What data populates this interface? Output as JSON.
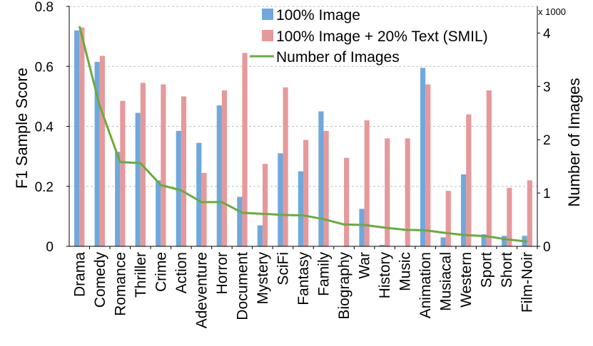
{
  "chart_data": {
    "type": "bar",
    "categories": [
      "Drama",
      "Comedy",
      "Romance",
      "Thriller",
      "Crime",
      "Action",
      "Adeventure",
      "Horror",
      "Document",
      "Mystery",
      "SciFi",
      "Fantasy",
      "Family",
      "Biography",
      "War",
      "History",
      "Music",
      "Animation",
      "Musiacal",
      "Western",
      "Sport",
      "Short",
      "Film-Noir"
    ],
    "series": [
      {
        "name": "100% Image",
        "kind": "bar",
        "axis": "left",
        "color": "#6fa8dc",
        "values": [
          0.72,
          0.615,
          0.315,
          0.445,
          0.22,
          0.385,
          0.345,
          0.47,
          0.165,
          0.07,
          0.31,
          0.25,
          0.45,
          0.0,
          0.125,
          0.005,
          0.0,
          0.595,
          0.03,
          0.24,
          0.04,
          0.035,
          0.035
        ]
      },
      {
        "name": "100% Image + 20% Text (SMIL)",
        "kind": "bar",
        "axis": "left",
        "color": "#e6999b",
        "values": [
          0.73,
          0.635,
          0.485,
          0.545,
          0.54,
          0.5,
          0.245,
          0.52,
          0.645,
          0.275,
          0.53,
          0.355,
          0.385,
          0.295,
          0.42,
          0.36,
          0.36,
          0.54,
          0.185,
          0.44,
          0.52,
          0.195,
          0.22
        ]
      },
      {
        "name": "Number of Images",
        "kind": "line",
        "axis": "right",
        "color": "#6aab3e",
        "values": [
          4.13,
          2.63,
          1.58,
          1.56,
          1.15,
          1.05,
          0.83,
          0.83,
          0.63,
          0.61,
          0.59,
          0.58,
          0.51,
          0.41,
          0.4,
          0.35,
          0.31,
          0.3,
          0.25,
          0.21,
          0.19,
          0.13,
          0.09
        ]
      }
    ],
    "xlabel": "",
    "ylabel": "F1 Sample Score",
    "ylabel_right": "Number of Images",
    "right_axis_multiplier": "x 1000",
    "ylim": [
      0,
      0.8
    ],
    "yticks": [
      "0",
      "0.2",
      "0.4",
      "0.6",
      "0.8"
    ],
    "ylim_right": [
      0,
      4.5
    ],
    "yticks_right": [
      "0",
      "1",
      "2",
      "3",
      "4"
    ],
    "grid": true,
    "legend_position": "top-center"
  }
}
